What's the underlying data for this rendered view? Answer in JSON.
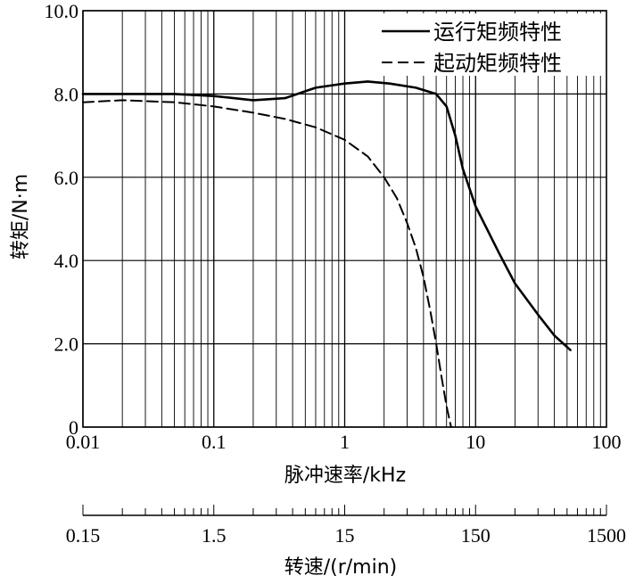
{
  "chart_data": {
    "type": "line",
    "xlabel": "脉冲速率/kHz",
    "ylabel": "转矩/N·m",
    "xscale": "log",
    "xlim": [
      0.01,
      100
    ],
    "ylim": [
      0,
      10
    ],
    "grid": true,
    "legend_position": "top-right",
    "x_ticks": [
      "0.01",
      "0.1",
      "1",
      "10",
      "100"
    ],
    "y_ticks": [
      "0",
      "2.0",
      "4.0",
      "6.0",
      "8.0",
      "10.0"
    ],
    "series": [
      {
        "name": "运行矩频特性",
        "style": "solid",
        "x": [
          0.01,
          0.02,
          0.05,
          0.1,
          0.2,
          0.35,
          0.6,
          1.0,
          1.5,
          2.2,
          3.5,
          5.0,
          6.0,
          7.0,
          8.0,
          10.0,
          15.0,
          20.0,
          30.0,
          40.0,
          53.0
        ],
        "y": [
          8.0,
          8.0,
          8.0,
          7.95,
          7.85,
          7.9,
          8.15,
          8.25,
          8.3,
          8.25,
          8.15,
          8.0,
          7.7,
          7.0,
          6.2,
          5.3,
          4.2,
          3.45,
          2.7,
          2.2,
          1.85
        ]
      },
      {
        "name": "起动矩频特性",
        "style": "dashed",
        "x": [
          0.01,
          0.02,
          0.05,
          0.1,
          0.2,
          0.35,
          0.6,
          1.0,
          1.5,
          2.0,
          2.5,
          3.0,
          3.5,
          4.0,
          4.5,
          5.0,
          5.5,
          6.0,
          6.5
        ],
        "y": [
          7.8,
          7.85,
          7.8,
          7.7,
          7.55,
          7.4,
          7.2,
          6.9,
          6.5,
          6.0,
          5.5,
          4.9,
          4.3,
          3.6,
          2.8,
          2.0,
          1.2,
          0.5,
          0.0
        ]
      }
    ]
  },
  "secondary_axis": {
    "title": "转速/(r/min)",
    "xscale": "log",
    "xlim": [
      0.15,
      1500
    ],
    "ticks": [
      "0.15",
      "1.5",
      "15",
      "150",
      "1500"
    ]
  }
}
